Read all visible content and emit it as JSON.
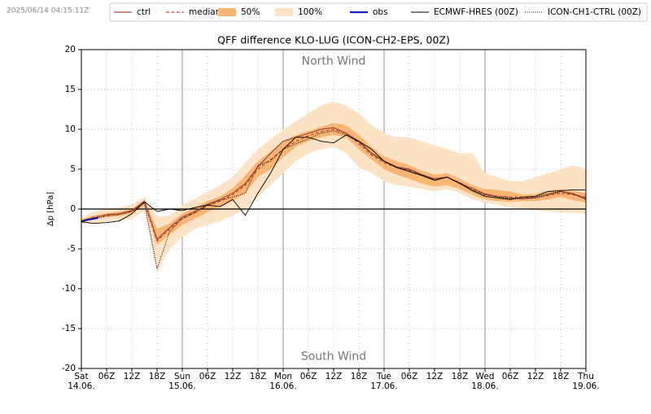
{
  "chart_data": {
    "type": "line",
    "timestamp": "2025/06/14 04:15:11Z",
    "title": "QFF difference KLO-LUG (ICON-CH2-EPS, 00Z)",
    "y_label": "Δp [hPa]",
    "annotations": [
      {
        "text": "North Wind",
        "x": 60,
        "y": 18.5
      },
      {
        "text": "South Wind",
        "x": 60,
        "y": -18.5
      }
    ],
    "x": [
      0,
      3,
      6,
      9,
      12,
      15,
      18,
      21,
      24,
      27,
      30,
      33,
      36,
      39,
      42,
      45,
      48,
      51,
      54,
      57,
      60,
      63,
      66,
      69,
      72,
      75,
      78,
      81,
      84,
      87,
      90,
      93,
      96,
      99,
      102,
      105,
      108,
      111,
      114,
      117,
      120
    ],
    "xlim": [
      0,
      120
    ],
    "xticks": [
      {
        "value": 0,
        "label": "Sat\n14.06."
      },
      {
        "value": 6,
        "label": "06Z"
      },
      {
        "value": 12,
        "label": "12Z"
      },
      {
        "value": 18,
        "label": "18Z"
      },
      {
        "value": 24,
        "label": "Sun\n15.06."
      },
      {
        "value": 30,
        "label": "06Z"
      },
      {
        "value": 36,
        "label": "12Z"
      },
      {
        "value": 42,
        "label": "18Z"
      },
      {
        "value": 48,
        "label": "Mon\n16.06."
      },
      {
        "value": 54,
        "label": "06Z"
      },
      {
        "value": 60,
        "label": "12Z"
      },
      {
        "value": 66,
        "label": "18Z"
      },
      {
        "value": 72,
        "label": "Tue\n17.06."
      },
      {
        "value": 78,
        "label": "06Z"
      },
      {
        "value": 84,
        "label": "12Z"
      },
      {
        "value": 90,
        "label": "18Z"
      },
      {
        "value": 96,
        "label": "Wed\n18.06."
      },
      {
        "value": 102,
        "label": "06Z"
      },
      {
        "value": 108,
        "label": "12Z"
      },
      {
        "value": 114,
        "label": "18Z"
      },
      {
        "value": 120,
        "label": "Thu\n19.06."
      }
    ],
    "day_lines": [
      0,
      24,
      48,
      72,
      96,
      120
    ],
    "ylim": [
      -20,
      20
    ],
    "yticks": [
      -20,
      -15,
      -10,
      -5,
      0,
      5,
      10,
      15,
      20
    ],
    "grid": true,
    "legend": "top",
    "series": [
      {
        "name": "ctrl",
        "kind": "line",
        "color": "#9c4f3c",
        "dash": "solid",
        "width": 1.2,
        "values": [
          -1.5,
          -1.1,
          -0.7,
          -0.6,
          -0.2,
          1.0,
          -3.8,
          -2.3,
          -1.0,
          -0.3,
          0.6,
          1.2,
          2.0,
          3.2,
          5.3,
          7.0,
          8.5,
          9.0,
          9.5,
          10.0,
          10.2,
          9.5,
          8.5,
          7.0,
          6.0,
          5.3,
          5.0,
          4.3,
          3.8,
          4.0,
          3.2,
          2.6,
          1.9,
          1.6,
          1.4,
          1.3,
          1.4,
          1.8,
          2.2,
          1.9,
          1.3
        ]
      },
      {
        "name": "median",
        "kind": "line",
        "color": "#c0462a",
        "dash": "dashed",
        "width": 1.2,
        "values": [
          -1.5,
          -1.0,
          -0.8,
          -0.6,
          -0.3,
          0.8,
          -4.0,
          -2.5,
          -1.2,
          -0.4,
          0.4,
          1.0,
          1.8,
          3.0,
          5.0,
          6.2,
          7.5,
          8.5,
          9.2,
          9.7,
          10.0,
          9.5,
          8.2,
          6.8,
          5.8,
          5.2,
          4.8,
          4.2,
          3.8,
          4.0,
          3.3,
          2.5,
          1.8,
          1.6,
          1.5,
          1.5,
          1.4,
          1.7,
          2.0,
          1.8,
          1.5
        ]
      },
      {
        "name": "50%",
        "kind": "band",
        "color": "#f8b574",
        "lower": [
          -1.7,
          -1.3,
          -1.0,
          -0.9,
          -0.6,
          0.4,
          -4.5,
          -3.2,
          -2.0,
          -1.2,
          -0.4,
          0.3,
          1.0,
          2.0,
          4.0,
          5.0,
          6.5,
          7.8,
          8.5,
          9.0,
          9.3,
          9.0,
          7.5,
          6.2,
          5.0,
          4.3,
          3.8,
          3.2,
          2.8,
          3.0,
          2.5,
          1.8,
          1.2,
          1.0,
          0.9,
          1.0,
          1.0,
          1.2,
          1.5,
          1.1,
          0.8
        ],
        "upper": [
          -1.3,
          -0.8,
          -0.5,
          -0.3,
          0.0,
          1.1,
          -2.5,
          -1.8,
          -0.6,
          0.2,
          1.0,
          1.6,
          2.6,
          4.2,
          6.0,
          7.2,
          8.5,
          9.3,
          9.8,
          10.3,
          10.8,
          10.5,
          9.3,
          7.8,
          6.6,
          6.0,
          5.5,
          4.8,
          4.3,
          4.5,
          3.8,
          3.0,
          2.5,
          2.4,
          2.2,
          1.8,
          1.9,
          2.3,
          2.5,
          2.3,
          2.0
        ]
      },
      {
        "name": "100%",
        "kind": "band",
        "color": "#fde3c6",
        "lower": [
          -1.9,
          -1.8,
          -1.6,
          -1.5,
          -1.2,
          -0.3,
          -8.0,
          -5.0,
          -3.5,
          -2.5,
          -2.0,
          -1.5,
          -0.8,
          0.0,
          1.5,
          3.0,
          4.5,
          6.0,
          7.0,
          7.5,
          7.8,
          7.0,
          5.2,
          4.5,
          3.5,
          3.0,
          2.8,
          2.5,
          2.2,
          2.5,
          2.0,
          1.2,
          0.8,
          0.5,
          0.2,
          0.0,
          -0.2,
          -0.3,
          -0.4,
          -0.5,
          -0.6
        ],
        "upper": [
          -1.1,
          -0.3,
          0.0,
          0.2,
          0.6,
          1.5,
          -1.0,
          -0.8,
          0.5,
          1.3,
          2.2,
          3.0,
          4.0,
          5.8,
          7.5,
          8.8,
          10.0,
          11.0,
          12.0,
          13.0,
          13.5,
          13.0,
          12.0,
          10.5,
          9.5,
          9.0,
          9.0,
          8.5,
          8.0,
          7.5,
          7.0,
          7.0,
          4.5,
          4.0,
          3.5,
          3.5,
          4.0,
          4.5,
          5.0,
          5.5,
          5.0
        ]
      },
      {
        "name": "obs",
        "kind": "line",
        "color": "#1a1ad0",
        "dash": "solid",
        "width": 2.2,
        "x": [
          0,
          1,
          2,
          3,
          4
        ],
        "values": [
          -1.6,
          -1.4,
          -1.3,
          -1.2,
          -1.1
        ]
      },
      {
        "name": "ECMWF-HRES (00Z)",
        "kind": "line",
        "color": "#000000",
        "dash": "solid",
        "width": 0.9,
        "values": [
          -1.6,
          -1.8,
          -1.7,
          -1.5,
          -0.6,
          0.9,
          -0.3,
          0.0,
          -0.2,
          0.2,
          0.5,
          0.3,
          1.2,
          -0.8,
          2.0,
          4.5,
          7.5,
          9.0,
          9.0,
          8.5,
          8.3,
          9.3,
          8.5,
          7.5,
          6.0,
          5.2,
          4.7,
          4.2,
          3.6,
          4.0,
          3.2,
          2.3,
          1.6,
          1.4,
          1.2,
          1.5,
          1.6,
          2.2,
          2.3,
          2.4,
          2.4
        ]
      },
      {
        "name": "ICON-CH1-CTRL (00Z)",
        "kind": "line",
        "color": "#000000",
        "dash": "dotted",
        "width": 1,
        "values": [
          -1.5,
          -1.2,
          -0.9,
          -0.7,
          -0.3,
          0.8,
          -7.5,
          -2.8,
          -1.2,
          -0.5,
          0.5,
          1.1,
          1.5,
          2.0,
          5.5,
          6.0,
          7.5,
          8.2,
          8.8,
          9.5,
          9.8,
          9.3,
          8.4,
          7.0,
          6.0,
          5.2,
          4.9,
          4.3,
          3.7,
          4.0,
          3.3,
          2.4,
          1.8,
          1.5,
          1.3,
          1.3,
          1.5,
          1.9,
          2.2,
          1.9,
          1.2
        ]
      }
    ]
  }
}
